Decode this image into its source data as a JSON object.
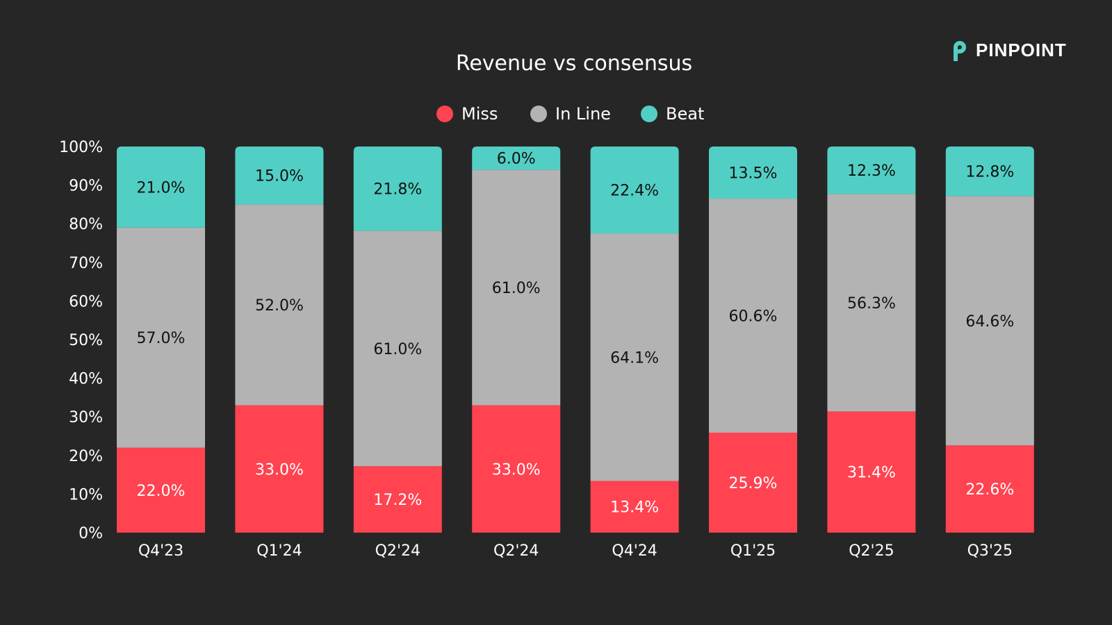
{
  "logo": {
    "text": "PINPOINT",
    "icon": "pinpoint-p-logo",
    "color": "#52cfc4"
  },
  "chart_data": {
    "type": "bar",
    "stacked": true,
    "title": "Revenue vs consensus",
    "xlabel": "",
    "ylabel": "",
    "ylim": [
      0,
      100
    ],
    "yticks": [
      "0%",
      "10%",
      "20%",
      "30%",
      "40%",
      "50%",
      "60%",
      "70%",
      "80%",
      "90%",
      "100%"
    ],
    "grid": false,
    "legend_placement": "top-center",
    "categories": [
      "Q4'23",
      "Q1'24",
      "Q2'24",
      "Q2'24",
      "Q4'24",
      "Q1'25",
      "Q2'25",
      "Q3'25"
    ],
    "series": [
      {
        "name": "Miss",
        "color": "#ff4351",
        "label_color": "#ffffff",
        "values": [
          22.0,
          33.0,
          17.2,
          33.0,
          13.4,
          25.9,
          31.4,
          22.6
        ],
        "labels": [
          "22.0%",
          "33.0%",
          "17.2%",
          "33.0%",
          "13.4%",
          "25.9%",
          "31.4%",
          "22.6%"
        ]
      },
      {
        "name": "In Line",
        "color": "#b3b3b3",
        "label_color": "#111111",
        "values": [
          57.0,
          52.0,
          61.0,
          61.0,
          64.1,
          60.6,
          56.3,
          64.6
        ],
        "labels": [
          "57.0%",
          "52.0%",
          "61.0%",
          "61.0%",
          "64.1%",
          "60.6%",
          "56.3%",
          "64.6%"
        ]
      },
      {
        "name": "Beat",
        "color": "#52cfc4",
        "label_color": "#111111",
        "values": [
          21.0,
          15.0,
          21.8,
          6.0,
          22.4,
          13.5,
          12.3,
          12.8
        ],
        "labels": [
          "21.0%",
          "15.0%",
          "21.8%",
          "6.0%",
          "22.4%",
          "13.5%",
          "12.3%",
          "12.8%"
        ]
      }
    ]
  }
}
